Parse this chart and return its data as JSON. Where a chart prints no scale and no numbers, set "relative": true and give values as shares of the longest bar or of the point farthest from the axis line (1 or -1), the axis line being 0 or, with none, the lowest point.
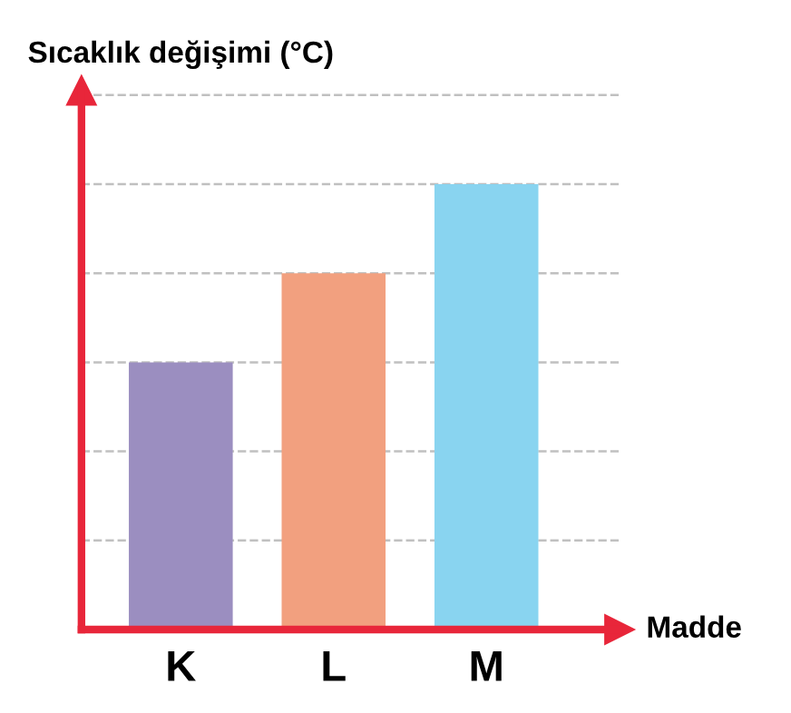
{
  "chart_data": {
    "type": "bar",
    "relative": true,
    "ylabel": "Sıcaklık değişimi (°C)",
    "xlabel": "Madde",
    "categories": [
      "K",
      "L",
      "M"
    ],
    "values": [
      0.6,
      0.8,
      1.0
    ],
    "colors": [
      "#9b8ec0",
      "#f2a07f",
      "#89d4f0"
    ],
    "grid": "y"
  }
}
